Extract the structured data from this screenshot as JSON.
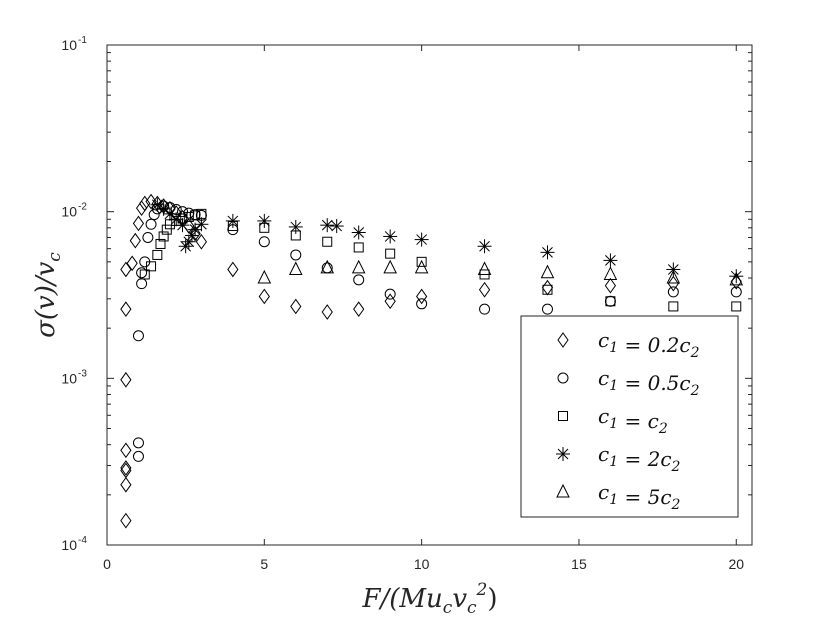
{
  "chart_data": {
    "type": "scatter",
    "xlabel": "F/(Mu_c v_c^2)",
    "ylabel": "σ(v)/v_c",
    "xlim": [
      0,
      20.5
    ],
    "ylim": [
      0.0001,
      0.1
    ],
    "yscale": "log",
    "x_ticks": [
      0,
      5,
      10,
      15,
      20
    ],
    "y_ticks": [
      {
        "value": 0.0001,
        "base": "10",
        "exp": "-4"
      },
      {
        "value": 0.001,
        "base": "10",
        "exp": "-3"
      },
      {
        "value": 0.01,
        "base": "10",
        "exp": "-2"
      },
      {
        "value": 0.1,
        "base": "10",
        "exp": "-1"
      }
    ],
    "grid": false,
    "legend_position": "lower-right",
    "series": [
      {
        "name": "c_1 = 0.2c_2",
        "marker": "diamond",
        "points": [
          [
            0.6,
            0.00014
          ],
          [
            0.6,
            0.00023
          ],
          [
            0.6,
            0.00028
          ],
          [
            0.6,
            0.00029
          ],
          [
            0.6,
            0.00037
          ],
          [
            0.6,
            0.00098
          ],
          [
            0.6,
            0.0026
          ],
          [
            0.6,
            0.0045
          ],
          [
            0.8,
            0.0049
          ],
          [
            0.9,
            0.0067
          ],
          [
            1.0,
            0.0085
          ],
          [
            1.1,
            0.0105
          ],
          [
            1.2,
            0.0112
          ],
          [
            1.4,
            0.0115
          ],
          [
            1.6,
            0.0112
          ],
          [
            1.8,
            0.0108
          ],
          [
            2.0,
            0.0104
          ],
          [
            2.2,
            0.0098
          ],
          [
            2.4,
            0.0092
          ],
          [
            2.6,
            0.0082
          ],
          [
            2.8,
            0.0074
          ],
          [
            3.0,
            0.0066
          ],
          [
            4.0,
            0.0045
          ],
          [
            5.0,
            0.0031
          ],
          [
            6.0,
            0.0027
          ],
          [
            7.0,
            0.0025
          ],
          [
            8.0,
            0.0026
          ],
          [
            9.0,
            0.0029
          ],
          [
            10.0,
            0.0031
          ],
          [
            12.0,
            0.0034
          ],
          [
            14.0,
            0.0035
          ],
          [
            16.0,
            0.0036
          ],
          [
            18.0,
            0.0037
          ],
          [
            20.0,
            0.0038
          ]
        ]
      },
      {
        "name": "c_1 = 0.5c_2",
        "marker": "circle",
        "points": [
          [
            1.0,
            0.00034
          ],
          [
            1.0,
            0.00041
          ],
          [
            1.0,
            0.0018
          ],
          [
            1.1,
            0.0037
          ],
          [
            1.1,
            0.0043
          ],
          [
            1.2,
            0.005
          ],
          [
            1.3,
            0.007
          ],
          [
            1.4,
            0.0084
          ],
          [
            1.5,
            0.0096
          ],
          [
            1.6,
            0.0104
          ],
          [
            1.8,
            0.0108
          ],
          [
            2.0,
            0.0106
          ],
          [
            2.2,
            0.0103
          ],
          [
            2.4,
            0.01
          ],
          [
            2.6,
            0.0098
          ],
          [
            2.8,
            0.0096
          ],
          [
            3.0,
            0.0095
          ],
          [
            4.0,
            0.0078
          ],
          [
            5.0,
            0.0066
          ],
          [
            6.0,
            0.0055
          ],
          [
            7.0,
            0.0046
          ],
          [
            8.0,
            0.0039
          ],
          [
            9.0,
            0.0032
          ],
          [
            10.0,
            0.0028
          ],
          [
            12.0,
            0.0026
          ],
          [
            14.0,
            0.0026
          ],
          [
            16.0,
            0.0029
          ],
          [
            18.0,
            0.0033
          ],
          [
            20.0,
            0.0033
          ]
        ]
      },
      {
        "name": "c_1 = c_2",
        "marker": "square",
        "points": [
          [
            1.2,
            0.0042
          ],
          [
            1.4,
            0.0047
          ],
          [
            1.6,
            0.0055
          ],
          [
            1.7,
            0.0064
          ],
          [
            1.8,
            0.0071
          ],
          [
            1.9,
            0.0078
          ],
          [
            2.0,
            0.0084
          ],
          [
            2.2,
            0.0088
          ],
          [
            2.4,
            0.0091
          ],
          [
            2.6,
            0.0093
          ],
          [
            2.8,
            0.0095
          ],
          [
            3.0,
            0.0097
          ],
          [
            4.0,
            0.0082
          ],
          [
            5.0,
            0.008
          ],
          [
            6.0,
            0.0072
          ],
          [
            7.0,
            0.0066
          ],
          [
            8.0,
            0.0061
          ],
          [
            9.0,
            0.0056
          ],
          [
            10.0,
            0.005
          ],
          [
            12.0,
            0.0042
          ],
          [
            14.0,
            0.0034
          ],
          [
            16.0,
            0.0029
          ],
          [
            18.0,
            0.0027
          ],
          [
            20.0,
            0.0027
          ]
        ]
      },
      {
        "name": "c_1 = 2c_2",
        "marker": "asterisk",
        "points": [
          [
            1.6,
            0.011
          ],
          [
            1.8,
            0.0104
          ],
          [
            2.0,
            0.0097
          ],
          [
            2.2,
            0.009
          ],
          [
            2.4,
            0.0083
          ],
          [
            2.5,
            0.0062
          ],
          [
            2.6,
            0.0066
          ],
          [
            2.7,
            0.0072
          ],
          [
            2.8,
            0.0078
          ],
          [
            3.0,
            0.0084
          ],
          [
            4.0,
            0.0088
          ],
          [
            5.0,
            0.0088
          ],
          [
            6.0,
            0.0081
          ],
          [
            7.0,
            0.0083
          ],
          [
            7.3,
            0.0082
          ],
          [
            8.0,
            0.0075
          ],
          [
            9.0,
            0.0071
          ],
          [
            10.0,
            0.0068
          ],
          [
            12.0,
            0.0062
          ],
          [
            14.0,
            0.0057
          ],
          [
            16.0,
            0.0051
          ],
          [
            18.0,
            0.0045
          ],
          [
            20.0,
            0.0041
          ]
        ]
      },
      {
        "name": "c_1 = 5c_2",
        "marker": "triangle",
        "points": [
          [
            5.0,
            0.004
          ],
          [
            6.0,
            0.0045
          ],
          [
            7.0,
            0.0046
          ],
          [
            8.0,
            0.0046
          ],
          [
            9.0,
            0.0046
          ],
          [
            10.0,
            0.0046
          ],
          [
            12.0,
            0.0045
          ],
          [
            14.0,
            0.0043
          ],
          [
            16.0,
            0.0042
          ],
          [
            18.0,
            0.004
          ],
          [
            20.0,
            0.0039
          ]
        ]
      }
    ]
  }
}
